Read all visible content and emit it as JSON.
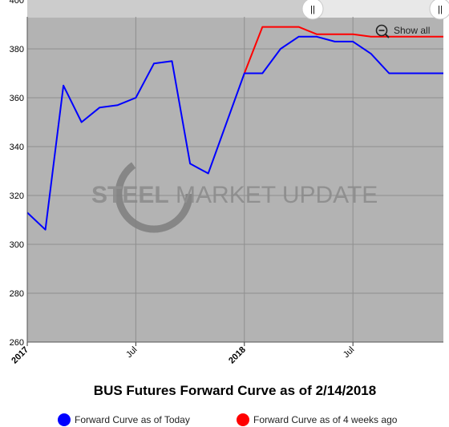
{
  "chart_data": {
    "type": "line",
    "title": "BUS Futures Forward Curve as of 2/14/2018",
    "xlabel": "",
    "ylabel": "",
    "ylim": [
      260,
      400
    ],
    "yticks": [
      "260",
      "280",
      "300",
      "320",
      "340",
      "360",
      "380",
      "400"
    ],
    "xlim": [
      "2017-01",
      "2018-12"
    ],
    "xticks": [
      {
        "label": "2017",
        "date": "2017-01",
        "major": true
      },
      {
        "label": "Jul",
        "date": "2017-07",
        "major": false
      },
      {
        "label": "2018",
        "date": "2018-01",
        "major": true
      },
      {
        "label": "Jul",
        "date": "2018-07",
        "major": false
      }
    ],
    "grid": true,
    "legend_position": "bottom",
    "series": [
      {
        "name": "Forward Curve as of Today",
        "color": "#0000ff",
        "points": [
          {
            "x": "2017-01",
            "y": 313
          },
          {
            "x": "2017-02",
            "y": 306
          },
          {
            "x": "2017-03",
            "y": 365
          },
          {
            "x": "2017-04",
            "y": 350
          },
          {
            "x": "2017-05",
            "y": 356
          },
          {
            "x": "2017-06",
            "y": 357
          },
          {
            "x": "2017-07",
            "y": 360
          },
          {
            "x": "2017-08",
            "y": 374
          },
          {
            "x": "2017-09",
            "y": 375
          },
          {
            "x": "2017-10",
            "y": 333
          },
          {
            "x": "2017-11",
            "y": 329
          },
          {
            "x": "2018-01",
            "y": 370
          },
          {
            "x": "2018-02",
            "y": 370
          },
          {
            "x": "2018-03",
            "y": 380
          },
          {
            "x": "2018-04",
            "y": 385
          },
          {
            "x": "2018-05",
            "y": 385
          },
          {
            "x": "2018-06",
            "y": 383
          },
          {
            "x": "2018-07",
            "y": 383
          },
          {
            "x": "2018-08",
            "y": 378
          },
          {
            "x": "2018-09",
            "y": 370
          },
          {
            "x": "2018-10",
            "y": 370
          },
          {
            "x": "2018-11",
            "y": 370
          },
          {
            "x": "2018-12",
            "y": 370
          }
        ]
      },
      {
        "name": "Forward Curve as of 4 weeks ago",
        "color": "#ff0000",
        "points": [
          {
            "x": "2018-01",
            "y": 370
          },
          {
            "x": "2018-02",
            "y": 389
          },
          {
            "x": "2018-03",
            "y": 389
          },
          {
            "x": "2018-04",
            "y": 389
          },
          {
            "x": "2018-05",
            "y": 386
          },
          {
            "x": "2018-06",
            "y": 386
          },
          {
            "x": "2018-07",
            "y": 386
          },
          {
            "x": "2018-08",
            "y": 385
          },
          {
            "x": "2018-09",
            "y": 385
          },
          {
            "x": "2018-10",
            "y": 385
          },
          {
            "x": "2018-11",
            "y": 385
          },
          {
            "x": "2018-12",
            "y": 385
          }
        ]
      }
    ]
  },
  "controls": {
    "show_all_label": "Show all",
    "navigator_left_handle": "||",
    "navigator_right_handle": "||"
  },
  "watermark": {
    "brand_bold": "STEEL",
    "brand_rest": " MARKET UPDATE"
  },
  "colors": {
    "plot_background": "#b3b3b3",
    "gridline": "#8f8f8f",
    "today_series": "#0000ff",
    "four_weeks_series": "#ff0000"
  }
}
